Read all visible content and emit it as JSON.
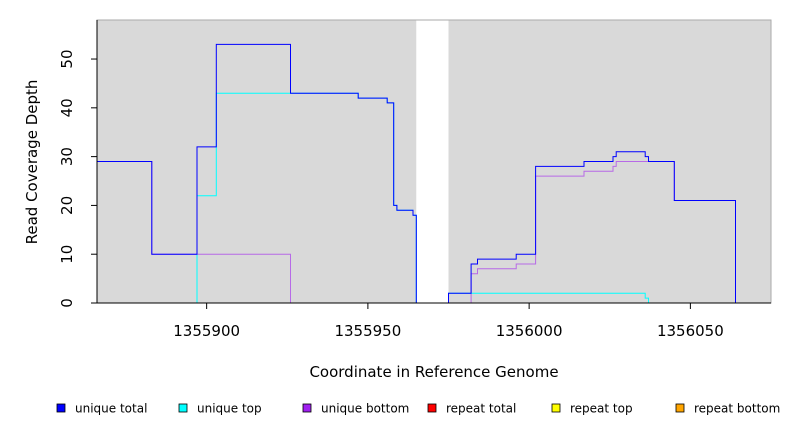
{
  "chart_data": {
    "type": "line",
    "xlabel": "Coordinate in Reference Genome",
    "ylabel": "Read Coverage Depth",
    "xlim": [
      1355866,
      1356075
    ],
    "ylim": [
      0,
      58
    ],
    "x_ticks": [
      1355900,
      1355950,
      1356000,
      1356050
    ],
    "y_ticks": [
      0,
      10,
      20,
      30,
      40,
      50
    ],
    "background": "#d9d9d9",
    "gap": [
      1355965,
      1355975
    ],
    "series": [
      {
        "name": "unique total",
        "color": "#0000ff",
        "points": [
          [
            1355866,
            29
          ],
          [
            1355883,
            29
          ],
          [
            1355883,
            10
          ],
          [
            1355897,
            10
          ],
          [
            1355897,
            32
          ],
          [
            1355903,
            32
          ],
          [
            1355903,
            53
          ],
          [
            1355926,
            53
          ],
          [
            1355926,
            43
          ],
          [
            1355947,
            43
          ],
          [
            1355947,
            42
          ],
          [
            1355956,
            42
          ],
          [
            1355956,
            41
          ],
          [
            1355958,
            41
          ],
          [
            1355958,
            20
          ],
          [
            1355959,
            20
          ],
          [
            1355959,
            19
          ],
          [
            1355964,
            19
          ],
          [
            1355964,
            18
          ],
          [
            1355965,
            18
          ],
          [
            1355965,
            0
          ],
          [
            1355975,
            0
          ],
          [
            1355975,
            2
          ],
          [
            1355982,
            2
          ],
          [
            1355982,
            8
          ],
          [
            1355984,
            8
          ],
          [
            1355984,
            9
          ],
          [
            1355996,
            9
          ],
          [
            1355996,
            10
          ],
          [
            1356002,
            10
          ],
          [
            1356002,
            28
          ],
          [
            1356017,
            28
          ],
          [
            1356017,
            29
          ],
          [
            1356026,
            29
          ],
          [
            1356026,
            30
          ],
          [
            1356027,
            30
          ],
          [
            1356027,
            31
          ],
          [
            1356036,
            31
          ],
          [
            1356036,
            30
          ],
          [
            1356037,
            30
          ],
          [
            1356037,
            29
          ],
          [
            1356045,
            29
          ],
          [
            1356045,
            21
          ],
          [
            1356064,
            21
          ],
          [
            1356064,
            0
          ],
          [
            1356075,
            0
          ]
        ]
      },
      {
        "name": "unique top",
        "color": "#00ffff",
        "points": [
          [
            1355866,
            0
          ],
          [
            1355897,
            0
          ],
          [
            1355897,
            22
          ],
          [
            1355903,
            22
          ],
          [
            1355903,
            43
          ],
          [
            1355926,
            43
          ],
          [
            1355926,
            43
          ],
          [
            1355947,
            43
          ],
          [
            1355947,
            42
          ],
          [
            1355956,
            42
          ],
          [
            1355956,
            41
          ],
          [
            1355958,
            41
          ],
          [
            1355958,
            20
          ],
          [
            1355959,
            20
          ],
          [
            1355959,
            19
          ],
          [
            1355964,
            19
          ],
          [
            1355964,
            18
          ],
          [
            1355965,
            18
          ],
          [
            1355965,
            0
          ],
          [
            1355975,
            0
          ],
          [
            1355975,
            2
          ],
          [
            1356036,
            2
          ],
          [
            1356036,
            1
          ],
          [
            1356037,
            1
          ],
          [
            1356037,
            0
          ],
          [
            1356075,
            0
          ]
        ]
      },
      {
        "name": "unique bottom",
        "color": "#a020f0",
        "points": [
          [
            1355866,
            29
          ],
          [
            1355883,
            29
          ],
          [
            1355883,
            10
          ],
          [
            1355926,
            10
          ],
          [
            1355926,
            0
          ],
          [
            1355982,
            0
          ],
          [
            1355982,
            6
          ],
          [
            1355984,
            6
          ],
          [
            1355984,
            7
          ],
          [
            1355996,
            7
          ],
          [
            1355996,
            8
          ],
          [
            1356002,
            8
          ],
          [
            1356002,
            26
          ],
          [
            1356017,
            26
          ],
          [
            1356017,
            27
          ],
          [
            1356026,
            27
          ],
          [
            1356026,
            28
          ],
          [
            1356027,
            28
          ],
          [
            1356027,
            29
          ],
          [
            1356045,
            29
          ],
          [
            1356045,
            21
          ],
          [
            1356064,
            21
          ],
          [
            1356064,
            0
          ],
          [
            1356075,
            0
          ]
        ]
      },
      {
        "name": "repeat total",
        "color": "#ff0000",
        "points": [
          [
            1355866,
            0
          ],
          [
            1356075,
            0
          ]
        ]
      },
      {
        "name": "repeat top",
        "color": "#ffff00",
        "points": [
          [
            1355866,
            0
          ],
          [
            1356075,
            0
          ]
        ]
      },
      {
        "name": "repeat bottom",
        "color": "#ffa500",
        "points": [
          [
            1355866,
            0
          ],
          [
            1356075,
            0
          ]
        ]
      }
    ]
  }
}
